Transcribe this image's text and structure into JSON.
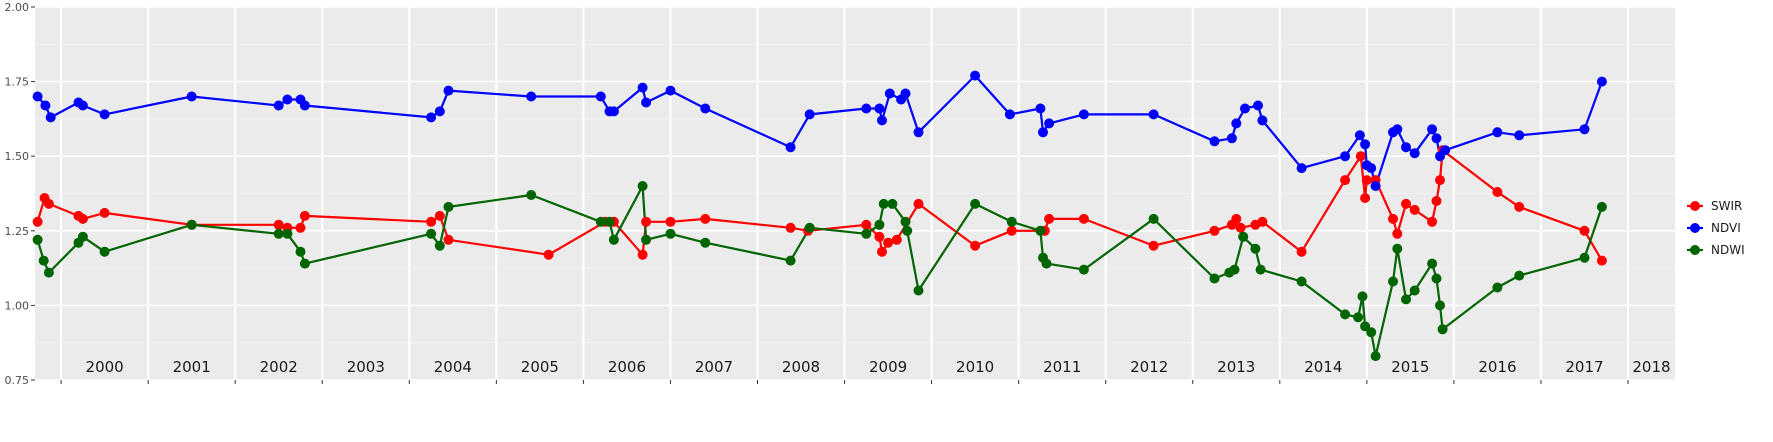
{
  "chart_data": {
    "type": "line",
    "title": "",
    "xlabel": "",
    "ylabel": "",
    "ylim": [
      0.75,
      2.0
    ],
    "yticks": [
      "0.75",
      "1.00",
      "1.25",
      "1.50",
      "1.75",
      "2.00"
    ],
    "xlim": [
      1999.7,
      2018.54
    ],
    "year_labels": [
      "2000",
      "2001",
      "2002",
      "2003",
      "2004",
      "2005",
      "2006",
      "2007",
      "2008",
      "2009",
      "2010",
      "2011",
      "2012",
      "2013",
      "2014",
      "2015",
      "2016",
      "2017",
      "2018"
    ],
    "grid": true,
    "legend_position": "right",
    "series": [
      {
        "name": "SWIR",
        "color": "#ff0000",
        "points": [
          [
            1999.73,
            1.28
          ],
          [
            1999.81,
            1.36
          ],
          [
            1999.86,
            1.34
          ],
          [
            2000.2,
            1.3
          ],
          [
            2000.25,
            1.29
          ],
          [
            2000.5,
            1.31
          ],
          [
            2001.5,
            1.27
          ],
          [
            2002.5,
            1.27
          ],
          [
            2002.6,
            1.26
          ],
          [
            2002.75,
            1.26
          ],
          [
            2002.8,
            1.3
          ],
          [
            2004.25,
            1.28
          ],
          [
            2004.35,
            1.3
          ],
          [
            2004.45,
            1.22
          ],
          [
            2005.6,
            1.17
          ],
          [
            2006.25,
            1.28
          ],
          [
            2006.35,
            1.28
          ],
          [
            2006.68,
            1.17
          ],
          [
            2006.72,
            1.28
          ],
          [
            2007.0,
            1.28
          ],
          [
            2007.4,
            1.29
          ],
          [
            2008.38,
            1.26
          ],
          [
            2008.58,
            1.25
          ],
          [
            2009.25,
            1.27
          ],
          [
            2009.4,
            1.23
          ],
          [
            2009.43,
            1.18
          ],
          [
            2009.5,
            1.21
          ],
          [
            2009.6,
            1.22
          ],
          [
            2009.85,
            1.34
          ],
          [
            2010.5,
            1.2
          ],
          [
            2010.92,
            1.25
          ],
          [
            2011.3,
            1.25
          ],
          [
            2011.35,
            1.29
          ],
          [
            2011.75,
            1.29
          ],
          [
            2012.55,
            1.2
          ],
          [
            2013.25,
            1.25
          ],
          [
            2013.45,
            1.27
          ],
          [
            2013.5,
            1.29
          ],
          [
            2013.55,
            1.26
          ],
          [
            2013.72,
            1.27
          ],
          [
            2013.8,
            1.28
          ],
          [
            2014.25,
            1.18
          ],
          [
            2014.75,
            1.42
          ],
          [
            2014.93,
            1.5
          ],
          [
            2014.98,
            1.36
          ],
          [
            2015.0,
            1.42
          ],
          [
            2015.1,
            1.42
          ],
          [
            2015.3,
            1.29
          ],
          [
            2015.35,
            1.24
          ],
          [
            2015.45,
            1.34
          ],
          [
            2015.55,
            1.32
          ],
          [
            2015.75,
            1.28
          ],
          [
            2015.8,
            1.35
          ],
          [
            2015.84,
            1.42
          ],
          [
            2015.87,
            1.52
          ],
          [
            2016.5,
            1.38
          ],
          [
            2016.75,
            1.33
          ],
          [
            2017.5,
            1.25
          ],
          [
            2017.7,
            1.15
          ]
        ]
      },
      {
        "name": "NDVI",
        "color": "#0000ff",
        "points": [
          [
            1999.73,
            1.7
          ],
          [
            1999.82,
            1.67
          ],
          [
            1999.88,
            1.63
          ],
          [
            2000.2,
            1.68
          ],
          [
            2000.25,
            1.67
          ],
          [
            2000.5,
            1.64
          ],
          [
            2001.5,
            1.7
          ],
          [
            2002.5,
            1.67
          ],
          [
            2002.6,
            1.69
          ],
          [
            2002.75,
            1.69
          ],
          [
            2002.8,
            1.67
          ],
          [
            2004.25,
            1.63
          ],
          [
            2004.35,
            1.65
          ],
          [
            2004.45,
            1.72
          ],
          [
            2005.4,
            1.7
          ],
          [
            2006.2,
            1.7
          ],
          [
            2006.3,
            1.65
          ],
          [
            2006.35,
            1.65
          ],
          [
            2006.68,
            1.73
          ],
          [
            2006.72,
            1.68
          ],
          [
            2007.0,
            1.72
          ],
          [
            2007.4,
            1.66
          ],
          [
            2008.38,
            1.53
          ],
          [
            2008.6,
            1.64
          ],
          [
            2009.25,
            1.66
          ],
          [
            2009.4,
            1.66
          ],
          [
            2009.43,
            1.62
          ],
          [
            2009.52,
            1.71
          ],
          [
            2009.65,
            1.69
          ],
          [
            2009.7,
            1.71
          ],
          [
            2009.85,
            1.58
          ],
          [
            2010.5,
            1.77
          ],
          [
            2010.9,
            1.64
          ],
          [
            2011.25,
            1.66
          ],
          [
            2011.28,
            1.58
          ],
          [
            2011.35,
            1.61
          ],
          [
            2011.75,
            1.64
          ],
          [
            2012.55,
            1.64
          ],
          [
            2013.25,
            1.55
          ],
          [
            2013.45,
            1.56
          ],
          [
            2013.5,
            1.61
          ],
          [
            2013.6,
            1.66
          ],
          [
            2013.75,
            1.67
          ],
          [
            2013.8,
            1.62
          ],
          [
            2014.25,
            1.46
          ],
          [
            2014.75,
            1.5
          ],
          [
            2014.92,
            1.57
          ],
          [
            2014.98,
            1.54
          ],
          [
            2015.0,
            1.47
          ],
          [
            2015.05,
            1.46
          ],
          [
            2015.1,
            1.4
          ],
          [
            2015.3,
            1.58
          ],
          [
            2015.35,
            1.59
          ],
          [
            2015.45,
            1.53
          ],
          [
            2015.55,
            1.51
          ],
          [
            2015.75,
            1.59
          ],
          [
            2015.8,
            1.56
          ],
          [
            2015.84,
            1.5
          ],
          [
            2015.9,
            1.52
          ],
          [
            2016.5,
            1.58
          ],
          [
            2016.75,
            1.57
          ],
          [
            2017.5,
            1.59
          ],
          [
            2017.7,
            1.75
          ]
        ]
      },
      {
        "name": "NDWI",
        "color": "#006400",
        "points": [
          [
            1999.73,
            1.22
          ],
          [
            1999.8,
            1.15
          ],
          [
            1999.86,
            1.11
          ],
          [
            2000.2,
            1.21
          ],
          [
            2000.25,
            1.23
          ],
          [
            2000.5,
            1.18
          ],
          [
            2001.5,
            1.27
          ],
          [
            2002.5,
            1.24
          ],
          [
            2002.6,
            1.24
          ],
          [
            2002.75,
            1.18
          ],
          [
            2002.8,
            1.14
          ],
          [
            2004.25,
            1.24
          ],
          [
            2004.35,
            1.2
          ],
          [
            2004.45,
            1.33
          ],
          [
            2005.4,
            1.37
          ],
          [
            2006.2,
            1.28
          ],
          [
            2006.3,
            1.28
          ],
          [
            2006.35,
            1.22
          ],
          [
            2006.68,
            1.4
          ],
          [
            2006.72,
            1.22
          ],
          [
            2007.0,
            1.24
          ],
          [
            2007.4,
            1.21
          ],
          [
            2008.38,
            1.15
          ],
          [
            2008.6,
            1.26
          ],
          [
            2009.25,
            1.24
          ],
          [
            2009.4,
            1.27
          ],
          [
            2009.45,
            1.34
          ],
          [
            2009.55,
            1.34
          ],
          [
            2009.7,
            1.28
          ],
          [
            2009.72,
            1.25
          ],
          [
            2009.85,
            1.05
          ],
          [
            2010.5,
            1.34
          ],
          [
            2010.92,
            1.28
          ],
          [
            2011.25,
            1.25
          ],
          [
            2011.28,
            1.16
          ],
          [
            2011.32,
            1.14
          ],
          [
            2011.75,
            1.12
          ],
          [
            2012.55,
            1.29
          ],
          [
            2013.25,
            1.09
          ],
          [
            2013.42,
            1.11
          ],
          [
            2013.48,
            1.12
          ],
          [
            2013.58,
            1.23
          ],
          [
            2013.72,
            1.19
          ],
          [
            2013.78,
            1.12
          ],
          [
            2014.25,
            1.08
          ],
          [
            2014.75,
            0.97
          ],
          [
            2014.9,
            0.96
          ],
          [
            2014.95,
            1.03
          ],
          [
            2014.98,
            0.93
          ],
          [
            2015.05,
            0.91
          ],
          [
            2015.1,
            0.83
          ],
          [
            2015.3,
            1.08
          ],
          [
            2015.35,
            1.19
          ],
          [
            2015.45,
            1.02
          ],
          [
            2015.55,
            1.05
          ],
          [
            2015.75,
            1.14
          ],
          [
            2015.8,
            1.09
          ],
          [
            2015.84,
            1.0
          ],
          [
            2015.87,
            0.92
          ],
          [
            2016.5,
            1.06
          ],
          [
            2016.75,
            1.1
          ],
          [
            2017.5,
            1.16
          ],
          [
            2017.7,
            1.33
          ]
        ]
      }
    ]
  }
}
